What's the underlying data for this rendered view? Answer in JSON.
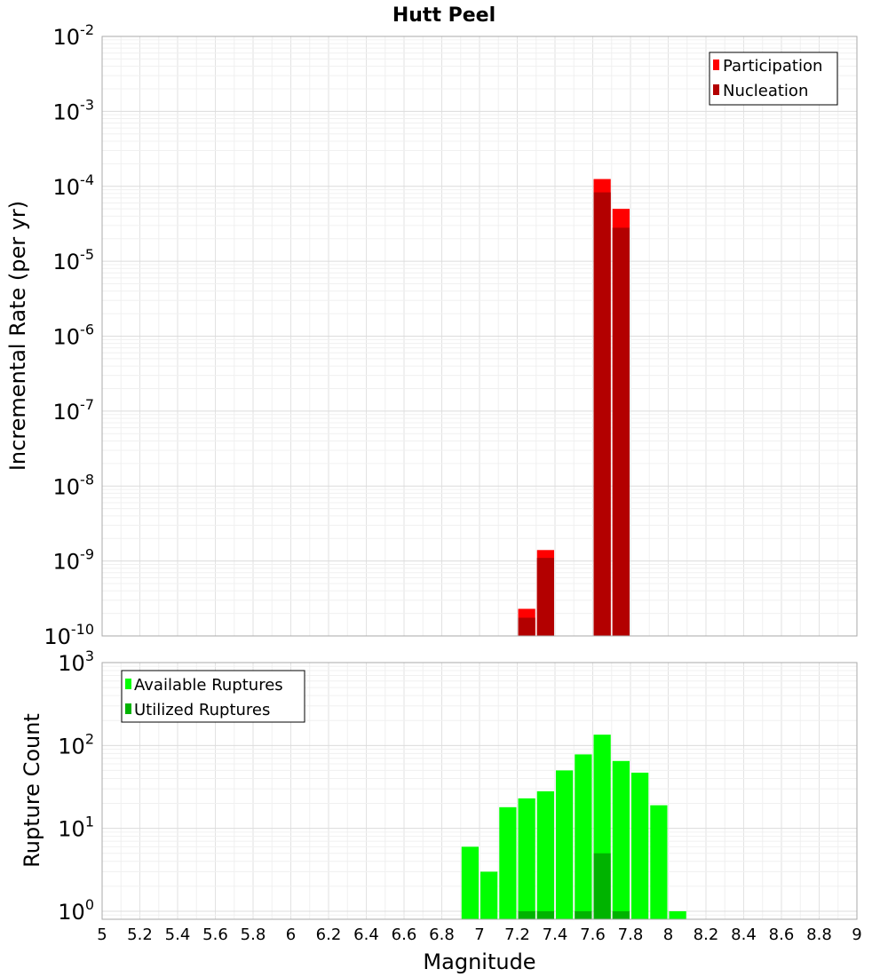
{
  "chart_data": [
    {
      "type": "bar",
      "title": "Hutt Peel",
      "xlabel": "",
      "ylabel": "Incremental Rate (per yr)",
      "yscale": "log",
      "ylim": [
        1e-10,
        0.01
      ],
      "xlim": [
        5,
        9
      ],
      "grid": true,
      "legend_position": "top-right",
      "bin_width": 0.1,
      "y_ticks": [
        {
          "base": "10",
          "exp": "-10"
        },
        {
          "base": "10",
          "exp": "-9"
        },
        {
          "base": "10",
          "exp": "-8"
        },
        {
          "base": "10",
          "exp": "-7"
        },
        {
          "base": "10",
          "exp": "-6"
        },
        {
          "base": "10",
          "exp": "-5"
        },
        {
          "base": "10",
          "exp": "-4"
        },
        {
          "base": "10",
          "exp": "-3"
        },
        {
          "base": "10",
          "exp": "-2"
        }
      ],
      "series": [
        {
          "name": "Participation",
          "color": "#ff0000",
          "points": [
            {
              "x": 7.25,
              "y": 2.3e-10
            },
            {
              "x": 7.35,
              "y": 1.4e-09
            },
            {
              "x": 7.65,
              "y": 0.000125
            },
            {
              "x": 7.75,
              "y": 5e-05
            }
          ]
        },
        {
          "name": "Nucleation",
          "color": "#b30000",
          "points": [
            {
              "x": 7.25,
              "y": 1.75e-10
            },
            {
              "x": 7.35,
              "y": 1.1e-09
            },
            {
              "x": 7.65,
              "y": 8.3e-05
            },
            {
              "x": 7.75,
              "y": 2.8e-05
            }
          ]
        }
      ]
    },
    {
      "type": "bar",
      "title": "",
      "xlabel": "Magnitude",
      "ylabel": "Rupture Count",
      "yscale": "log",
      "ylim": [
        0.8,
        1000
      ],
      "xlim": [
        5,
        9
      ],
      "grid": true,
      "legend_position": "top-left",
      "bin_width": 0.1,
      "y_ticks": [
        {
          "base": "10",
          "exp": "0"
        },
        {
          "base": "10",
          "exp": "1"
        },
        {
          "base": "10",
          "exp": "2"
        },
        {
          "base": "10",
          "exp": "3"
        }
      ],
      "x_ticks": [
        "5",
        "5.2",
        "5.4",
        "5.6",
        "5.8",
        "6",
        "6.2",
        "6.4",
        "6.6",
        "6.8",
        "7",
        "7.2",
        "7.4",
        "7.6",
        "7.8",
        "8",
        "8.2",
        "8.4",
        "8.6",
        "8.8",
        "9"
      ],
      "series": [
        {
          "name": "Available Ruptures",
          "color": "#00ff00",
          "points": [
            {
              "x": 6.95,
              "y": 6
            },
            {
              "x": 7.05,
              "y": 3
            },
            {
              "x": 7.15,
              "y": 18
            },
            {
              "x": 7.25,
              "y": 23
            },
            {
              "x": 7.35,
              "y": 28
            },
            {
              "x": 7.45,
              "y": 50
            },
            {
              "x": 7.55,
              "y": 78
            },
            {
              "x": 7.65,
              "y": 135
            },
            {
              "x": 7.75,
              "y": 65
            },
            {
              "x": 7.85,
              "y": 47
            },
            {
              "x": 7.95,
              "y": 19
            },
            {
              "x": 8.05,
              "y": 1
            }
          ]
        },
        {
          "name": "Utilized Ruptures",
          "color": "#00b300",
          "points": [
            {
              "x": 7.25,
              "y": 1
            },
            {
              "x": 7.35,
              "y": 1
            },
            {
              "x": 7.55,
              "y": 1
            },
            {
              "x": 7.65,
              "y": 5
            },
            {
              "x": 7.75,
              "y": 1
            }
          ]
        }
      ]
    }
  ]
}
